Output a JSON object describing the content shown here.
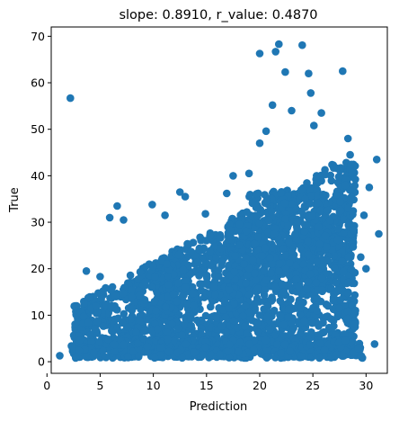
{
  "chart_data": {
    "type": "scatter",
    "title": "slope: 0.8910, r_value: 0.4870",
    "xlabel": "Prediction",
    "ylabel": "True",
    "xlim": [
      0.4,
      32.0
    ],
    "ylim": [
      -2.5,
      72.0
    ],
    "xticks": [
      0,
      5,
      10,
      15,
      20,
      25,
      30
    ],
    "yticks": [
      0,
      10,
      20,
      30,
      40,
      50,
      60,
      70
    ],
    "grid": false,
    "marker_color": "#1f77b4",
    "cluster": {
      "description_points": "dense cloud of roughly 3000 points, bulk between x 2-30 and y 1-40, densest around x 20-27",
      "notable_points": [
        {
          "x": 1.2,
          "y": 1.3
        },
        {
          "x": 2.2,
          "y": 56.7
        },
        {
          "x": 3.5,
          "y": 12.5
        },
        {
          "x": 3.7,
          "y": 19.5
        },
        {
          "x": 5.0,
          "y": 18.3
        },
        {
          "x": 5.9,
          "y": 31.0
        },
        {
          "x": 6.6,
          "y": 33.5
        },
        {
          "x": 7.2,
          "y": 30.5
        },
        {
          "x": 9.9,
          "y": 33.8
        },
        {
          "x": 11.1,
          "y": 31.5
        },
        {
          "x": 12.5,
          "y": 36.5
        },
        {
          "x": 13.0,
          "y": 35.5
        },
        {
          "x": 14.9,
          "y": 31.8
        },
        {
          "x": 16.9,
          "y": 36.2
        },
        {
          "x": 17.5,
          "y": 40.0
        },
        {
          "x": 19.0,
          "y": 40.5
        },
        {
          "x": 20.0,
          "y": 47.0
        },
        {
          "x": 20.6,
          "y": 49.6
        },
        {
          "x": 21.2,
          "y": 55.2
        },
        {
          "x": 21.5,
          "y": 66.7
        },
        {
          "x": 21.8,
          "y": 68.3
        },
        {
          "x": 22.4,
          "y": 62.3
        },
        {
          "x": 23.0,
          "y": 54.0
        },
        {
          "x": 24.0,
          "y": 68.1
        },
        {
          "x": 24.6,
          "y": 62.0
        },
        {
          "x": 24.8,
          "y": 57.8
        },
        {
          "x": 25.8,
          "y": 53.5
        },
        {
          "x": 25.1,
          "y": 50.8
        },
        {
          "x": 27.8,
          "y": 62.5
        },
        {
          "x": 28.3,
          "y": 48.0
        },
        {
          "x": 28.5,
          "y": 44.5
        },
        {
          "x": 29.8,
          "y": 31.5
        },
        {
          "x": 30.3,
          "y": 37.5
        },
        {
          "x": 31.0,
          "y": 43.5
        },
        {
          "x": 31.2,
          "y": 27.5
        },
        {
          "x": 30.8,
          "y": 3.8
        },
        {
          "x": 20.0,
          "y": 66.3
        },
        {
          "x": 29.0,
          "y": 11.0
        },
        {
          "x": 29.5,
          "y": 22.5
        },
        {
          "x": 30.0,
          "y": 20.0
        }
      ]
    }
  }
}
